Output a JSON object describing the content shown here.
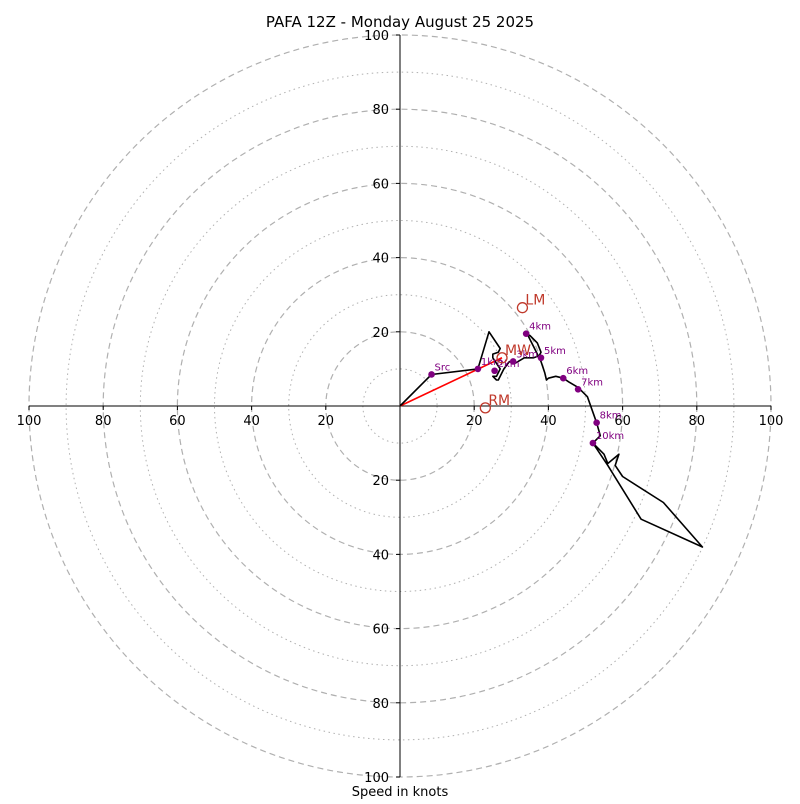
{
  "chart_data": {
    "type": "hodograph",
    "title": "PAFA 12Z - Monday August 25 2025",
    "xlabel": "Speed in knots",
    "ylabel": "",
    "xlim": [
      -100,
      100
    ],
    "ylim": [
      -100,
      100
    ],
    "axis_ticks": [
      -100,
      -80,
      -60,
      -40,
      -20,
      20,
      40,
      60,
      80,
      100
    ],
    "axis_tick_labels": [
      "100",
      "80",
      "60",
      "40",
      "20",
      "20",
      "40",
      "60",
      "80",
      "100"
    ],
    "ring_major": [
      20,
      40,
      60,
      80,
      100
    ],
    "ring_minor": [
      10,
      30,
      50,
      70,
      90
    ],
    "grid": true,
    "trace": [
      [
        0,
        0
      ],
      [
        8.5,
        8.5
      ],
      [
        21,
        10
      ],
      [
        24,
        20
      ],
      [
        27,
        15.5
      ],
      [
        26.5,
        14.5
      ],
      [
        25,
        14
      ],
      [
        25,
        13
      ],
      [
        27,
        10
      ],
      [
        26,
        8
      ],
      [
        25,
        8
      ],
      [
        26,
        7
      ],
      [
        26.5,
        7
      ],
      [
        27,
        8
      ],
      [
        27.5,
        9
      ],
      [
        28,
        10
      ],
      [
        29.5,
        12
      ],
      [
        31,
        11.5
      ],
      [
        33.5,
        13
      ],
      [
        36,
        13
      ],
      [
        37.5,
        13.5
      ],
      [
        38,
        14.5
      ],
      [
        37,
        17
      ],
      [
        35,
        19
      ],
      [
        34,
        19.5
      ],
      [
        34.5,
        19
      ],
      [
        36,
        16
      ],
      [
        38,
        12
      ],
      [
        39,
        9
      ],
      [
        39.5,
        7
      ],
      [
        40,
        7.5
      ],
      [
        42,
        8
      ],
      [
        44,
        7.5
      ],
      [
        45.5,
        6.5
      ],
      [
        48,
        5
      ],
      [
        50.5,
        2.5
      ],
      [
        53,
        -4.5
      ],
      [
        54,
        -8
      ],
      [
        52,
        -10
      ],
      [
        55,
        -13
      ],
      [
        56,
        -15.5
      ],
      [
        59,
        -13
      ],
      [
        58,
        -16
      ],
      [
        60,
        -19
      ],
      [
        71,
        -26
      ],
      [
        81.5,
        -38
      ],
      [
        65,
        -30.5
      ],
      [
        56,
        -16
      ],
      [
        52,
        -10
      ]
    ],
    "height_markers": [
      {
        "label": "Src",
        "u": 8.5,
        "v": 8.5
      },
      {
        "label": "1km",
        "u": 21,
        "v": 10
      },
      {
        "label": "2km",
        "u": 25.5,
        "v": 9.5
      },
      {
        "label": "3km",
        "u": 30.5,
        "v": 12
      },
      {
        "label": "4km",
        "u": 34,
        "v": 19.5
      },
      {
        "label": "5km",
        "u": 38,
        "v": 13
      },
      {
        "label": "6km",
        "u": 44,
        "v": 7.5
      },
      {
        "label": "7km",
        "u": 48,
        "v": 4.5
      },
      {
        "label": "8km",
        "u": 53,
        "v": -4.5
      },
      {
        "label": "10km",
        "u": 52,
        "v": -10
      }
    ],
    "storm_motions": [
      {
        "label": "LM",
        "u": 33,
        "v": 26.5
      },
      {
        "label": "MW",
        "u": 27.5,
        "v": 13
      },
      {
        "label": "RM",
        "u": 23,
        "v": -0.5
      }
    ],
    "shear_vector": {
      "from": [
        0,
        0
      ],
      "to": [
        27.5,
        13
      ]
    },
    "colors": {
      "trace": "#000000",
      "marker": "#800080",
      "storm_motion": "#c0392b",
      "shear_vector": "#ff0000",
      "grid": "#b0b0b0",
      "axis": "#000000",
      "text": "#000000"
    }
  }
}
